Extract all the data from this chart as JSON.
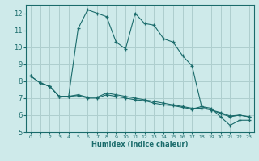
{
  "xlabel": "Humidex (Indice chaleur)",
  "bg_color": "#ceeaea",
  "grid_color": "#aecece",
  "line_color": "#1a6b6b",
  "xlim": [
    -0.5,
    23.5
  ],
  "ylim": [
    5,
    12.5
  ],
  "yticks": [
    5,
    6,
    7,
    8,
    9,
    10,
    11,
    12
  ],
  "xticks": [
    0,
    1,
    2,
    3,
    4,
    5,
    6,
    7,
    8,
    9,
    10,
    11,
    12,
    13,
    14,
    15,
    16,
    17,
    18,
    19,
    20,
    21,
    22,
    23
  ],
  "series1_x": [
    0,
    1,
    2,
    3,
    4,
    5,
    6,
    7,
    8,
    9,
    10,
    11,
    12,
    13,
    14,
    15,
    16,
    17,
    18,
    19,
    20,
    21,
    22,
    23
  ],
  "series1_y": [
    8.3,
    7.9,
    7.7,
    7.1,
    7.1,
    11.1,
    12.2,
    12.0,
    11.8,
    10.3,
    9.9,
    12.0,
    11.4,
    11.3,
    10.5,
    10.3,
    9.5,
    8.9,
    6.5,
    6.4,
    5.9,
    5.4,
    5.7,
    5.7
  ],
  "series2_x": [
    0,
    1,
    2,
    3,
    4,
    5,
    6,
    7,
    8,
    9,
    10,
    11,
    12,
    13,
    14,
    15,
    16,
    17,
    18,
    19,
    20,
    21,
    22,
    23
  ],
  "series2_y": [
    8.3,
    7.9,
    7.7,
    7.1,
    7.1,
    7.2,
    7.05,
    7.05,
    7.3,
    7.2,
    7.1,
    7.0,
    6.9,
    6.8,
    6.7,
    6.6,
    6.5,
    6.4,
    6.4,
    6.3,
    6.1,
    5.9,
    6.0,
    5.9
  ],
  "series3_x": [
    1,
    2,
    3,
    4,
    5,
    6,
    7,
    8,
    9,
    10,
    11,
    12,
    13,
    14,
    15,
    16,
    17,
    18,
    19,
    20,
    21,
    22,
    23
  ],
  "series3_y": [
    7.9,
    7.7,
    7.1,
    7.1,
    7.15,
    7.0,
    7.0,
    7.2,
    7.1,
    7.0,
    6.9,
    6.85,
    6.7,
    6.6,
    6.55,
    6.45,
    6.35,
    6.5,
    6.3,
    6.15,
    5.95,
    6.0,
    5.9
  ]
}
